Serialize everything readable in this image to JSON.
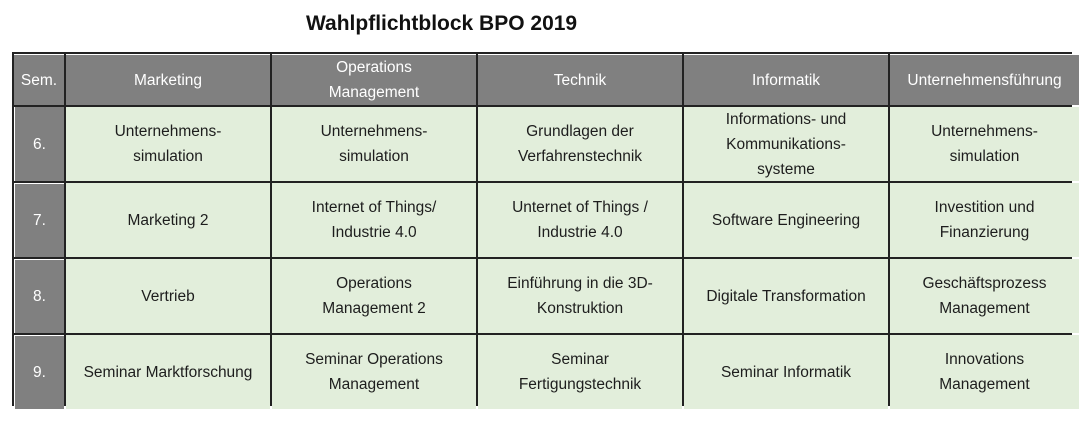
{
  "title": "Wahlpflichtblock BPO 2019",
  "table": {
    "headers": [
      "Sem.",
      "Marketing",
      "Operations\nManagement",
      "Technik",
      "Informatik",
      "Unternehmensführung"
    ],
    "rows": [
      {
        "sem": "6.",
        "cells": [
          "Unternehmens-\nsimulation",
          "Unternehmens-\nsimulation",
          "Grundlagen der\nVerfahrenstechnik",
          "Informations- und\nKommunikations-\nsysteme",
          "Unternehmens-\nsimulation"
        ]
      },
      {
        "sem": "7.",
        "cells": [
          "Marketing 2",
          "Internet of Things/\nIndustrie 4.0",
          "Unternet of Things /\nIndustrie 4.0",
          "Software Engineering",
          "Investition und\nFinanzierung"
        ]
      },
      {
        "sem": "8.",
        "cells": [
          "Vertrieb",
          "Operations\nManagement 2",
          "Einführung in die 3D-\nKonstruktion",
          "Digitale Transformation",
          "Geschäftsprozess\nManagement"
        ]
      },
      {
        "sem": "9.",
        "cells": [
          "Seminar Marktforschung",
          "Seminar Operations\nManagement",
          "Seminar\nFertigungstechnik",
          "Seminar Informatik",
          "Innovations\nManagement"
        ]
      }
    ]
  },
  "colors": {
    "header_bg": "#808080",
    "header_text": "#ffffff",
    "cell_bg": "#e2eedb",
    "border": "#222222"
  }
}
